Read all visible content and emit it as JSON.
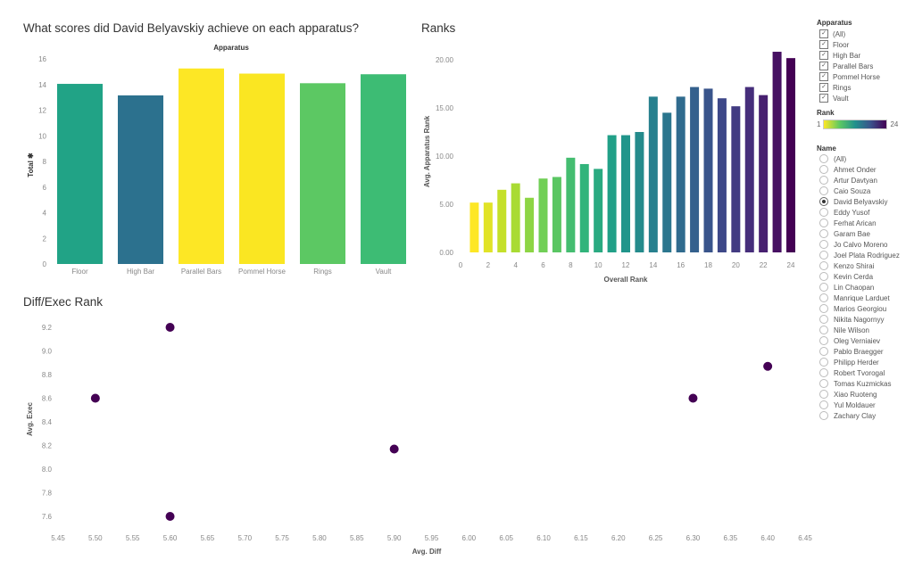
{
  "charts": {
    "scores": {
      "title": "What scores did David Belyavskiy achieve on each apparatus?",
      "header": "Apparatus",
      "ylabel": "Total",
      "ylabel_icon": "pin-icon"
    },
    "ranks": {
      "title": "Ranks",
      "xlabel": "Overall Rank",
      "ylabel": "Avg. Apparatus Rank"
    },
    "diffexec": {
      "title": "Diff/Exec Rank",
      "xlabel": "Avg. Diff",
      "ylabel": "Avg. Exec"
    }
  },
  "chart_data": [
    {
      "type": "bar",
      "title": "What scores did David Belyavskiy achieve on each apparatus?",
      "xlabel": "Apparatus",
      "ylabel": "Total",
      "categories": [
        "Floor",
        "High Bar",
        "Parallel Bars",
        "Pommel Horse",
        "Rings",
        "Vault"
      ],
      "values": [
        14.05,
        13.15,
        15.25,
        14.85,
        14.1,
        14.8
      ],
      "colors": [
        "#21a386",
        "#2c718e",
        "#fde725",
        "#fae622",
        "#5cc863",
        "#3dbc74"
      ],
      "ylim": [
        0,
        16
      ],
      "yticks": [
        0,
        2,
        4,
        6,
        8,
        10,
        12,
        14,
        16
      ],
      "grid": false
    },
    {
      "type": "bar",
      "title": "Ranks",
      "xlabel": "Overall Rank",
      "ylabel": "Avg. Apparatus Rank",
      "x": [
        1,
        2,
        3,
        4,
        5,
        6,
        7,
        8,
        9,
        10,
        11,
        12,
        13,
        14,
        15,
        16,
        17,
        18,
        19,
        20,
        21,
        22,
        23,
        24
      ],
      "values": [
        5.17,
        5.17,
        6.5,
        7.17,
        5.67,
        7.67,
        7.83,
        9.83,
        9.17,
        8.67,
        12.17,
        12.17,
        12.5,
        16.17,
        14.5,
        16.17,
        17.17,
        17.0,
        16.0,
        15.17,
        17.17,
        16.33,
        20.83,
        20.17
      ],
      "xlim": [
        0,
        24
      ],
      "xticks": [
        0,
        2,
        4,
        6,
        8,
        10,
        12,
        14,
        16,
        18,
        20,
        22,
        24
      ],
      "ylim": [
        0,
        21
      ],
      "yticks": [
        "0.00",
        "5.00",
        "10.00",
        "15.00",
        "20.00"
      ],
      "color_scale": "viridis-reversed by Rank",
      "grid": false
    },
    {
      "type": "scatter",
      "title": "Diff/Exec Rank",
      "xlabel": "Avg. Diff",
      "ylabel": "Avg. Exec",
      "points": [
        {
          "x": 5.5,
          "y": 8.6
        },
        {
          "x": 5.6,
          "y": 9.2
        },
        {
          "x": 5.6,
          "y": 7.6
        },
        {
          "x": 5.9,
          "y": 8.17
        },
        {
          "x": 6.3,
          "y": 8.6
        },
        {
          "x": 6.4,
          "y": 8.87
        }
      ],
      "xlim": [
        5.45,
        6.45
      ],
      "xticks": [
        "5.45",
        "5.50",
        "5.55",
        "5.60",
        "5.65",
        "5.70",
        "5.75",
        "5.80",
        "5.85",
        "5.90",
        "5.95",
        "6.00",
        "6.05",
        "6.10",
        "6.15",
        "6.20",
        "6.25",
        "6.30",
        "6.35",
        "6.40",
        "6.45"
      ],
      "ylim": [
        7.5,
        9.3
      ],
      "yticks": [
        "7.6",
        "7.8",
        "8.0",
        "8.2",
        "8.4",
        "8.6",
        "8.8",
        "9.0",
        "9.2"
      ],
      "color": "#440154",
      "grid": false
    }
  ],
  "legend": {
    "apparatus": {
      "title": "Apparatus",
      "items": [
        "(All)",
        "Floor",
        "High Bar",
        "Parallel Bars",
        "Pommel Horse",
        "Rings",
        "Vault"
      ],
      "checked": [
        true,
        true,
        true,
        true,
        true,
        true,
        true
      ]
    },
    "rank": {
      "title": "Rank",
      "min": "1",
      "max": "24"
    },
    "name": {
      "title": "Name",
      "selected": "David Belyavskiy",
      "items": [
        "(All)",
        "Ahmet Onder",
        "Artur Davtyan",
        "Caio Souza",
        "David Belyavskiy",
        "Eddy Yusof",
        "Ferhat Arican",
        "Garam Bae",
        "Jo Calvo Moreno",
        "Joel Plata Rodriguez",
        "Kenzo Shirai",
        "Kevin Cerda",
        "Lin Chaopan",
        "Manrique Larduet",
        "Marios Georgiou",
        "Nikita Nagornyy",
        "Nile Wilson",
        "Oleg Verniaiev",
        "Pablo Braegger",
        "Philipp Herder",
        "Robert Tvorogal",
        "Tomas Kuzmickas",
        "Xiao Ruoteng",
        "Yul Moldauer",
        "Zachary Clay"
      ]
    }
  }
}
